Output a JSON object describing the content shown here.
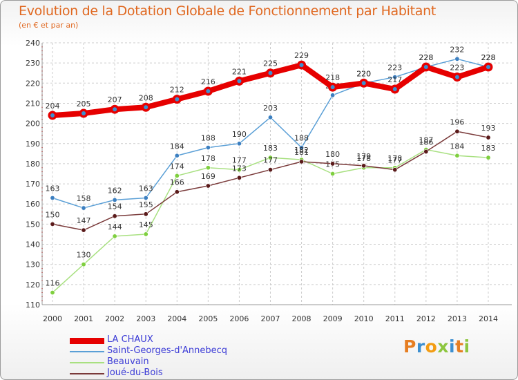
{
  "header": {
    "title": "Evolution de la Dotation Globale de Fonctionnement par Habitant",
    "subtitle": "(en € et par an)"
  },
  "logo": {
    "text": "Proxiti"
  },
  "chart_data": {
    "type": "line",
    "title": "Evolution de la Dotation Globale de Fonctionnement par Habitant",
    "subtitle": "(en € et par an)",
    "xlabel": "",
    "ylabel": "",
    "ylim": [
      110,
      240
    ],
    "y_ticks": [
      110,
      120,
      130,
      140,
      150,
      160,
      170,
      180,
      190,
      200,
      210,
      220,
      230,
      240
    ],
    "x": [
      "2000",
      "2001",
      "2002",
      "2003",
      "2004",
      "2005",
      "2006",
      "2007",
      "2008",
      "2009",
      "2010",
      "2011",
      "2012",
      "2013",
      "2014"
    ],
    "grid": true,
    "legend_position": "bottom-left",
    "series": [
      {
        "name": "LA CHAUX",
        "color": "#e60000",
        "marker": "#3c8fd0",
        "line_width": 8,
        "values": [
          204,
          205,
          207,
          208,
          212,
          216,
          221,
          225,
          229,
          218,
          220,
          217,
          228,
          223,
          228
        ]
      },
      {
        "name": "Saint-Georges-d'Annebecq",
        "color": "#5a9fd6",
        "marker": "#3c7fc0",
        "line_width": 1.5,
        "values": [
          163,
          158,
          162,
          163,
          184,
          188,
          190,
          203,
          188,
          214,
          220,
          223,
          228,
          232,
          228
        ]
      },
      {
        "name": "Beauvain",
        "color": "#a8e080",
        "marker": "#7fcf3f",
        "line_width": 1.5,
        "values": [
          116,
          130,
          144,
          145,
          174,
          178,
          177,
          183,
          182,
          175,
          178,
          178,
          187,
          184,
          183
        ]
      },
      {
        "name": "Joué-du-Bois",
        "color": "#7a3a3a",
        "marker": "#5a1a1a",
        "line_width": 1.5,
        "values": [
          150,
          147,
          154,
          155,
          166,
          169,
          173,
          177,
          181,
          180,
          179,
          177,
          186,
          196,
          193
        ]
      }
    ]
  }
}
